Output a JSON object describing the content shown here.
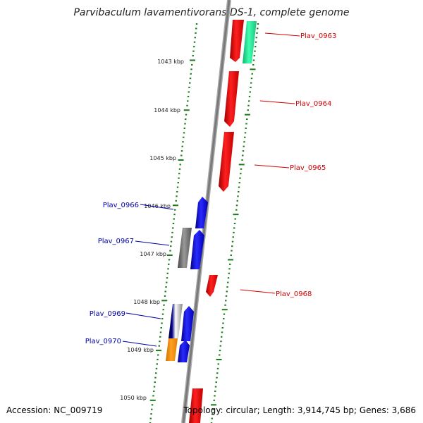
{
  "title": "Parvibaculum lavamentivorans DS-1, complete genome",
  "footer": {
    "accession": "Accession: NC_009719",
    "summary": "Topology: circular; Length: 3,914,745 bp; Genes: 3,686"
  },
  "colors": {
    "backbone": "#888888",
    "tick": "#1a7a1a",
    "forward_label": "#d40000",
    "reverse_label": "#0000aa"
  },
  "ticks": [
    {
      "label": "1043 kbp"
    },
    {
      "label": "1044 kbp"
    },
    {
      "label": "1045 kbp"
    },
    {
      "label": "1046 kbp"
    },
    {
      "label": "1047 kbp"
    },
    {
      "label": "1048 kbp"
    },
    {
      "label": "1049 kbp"
    },
    {
      "label": "1050 kbp"
    }
  ],
  "genes": [
    {
      "name": "Plav_0963",
      "strand": "+",
      "color": "#ff0000"
    },
    {
      "name": "Plav_0964",
      "strand": "+",
      "color": "#ff0000"
    },
    {
      "name": "Plav_0965",
      "strand": "+",
      "color": "#ff0000"
    },
    {
      "name": "Plav_0966",
      "strand": "-",
      "color": "#0000ff"
    },
    {
      "name": "Plav_0967",
      "strand": "-",
      "color": "#0000ff"
    },
    {
      "name": "Plav_0968",
      "strand": "+",
      "color": "#ff0000"
    },
    {
      "name": "Plav_0969",
      "strand": "-",
      "color": "#0000ff"
    },
    {
      "name": "Plav_0970",
      "strand": "-",
      "color": "#0000ff"
    }
  ]
}
